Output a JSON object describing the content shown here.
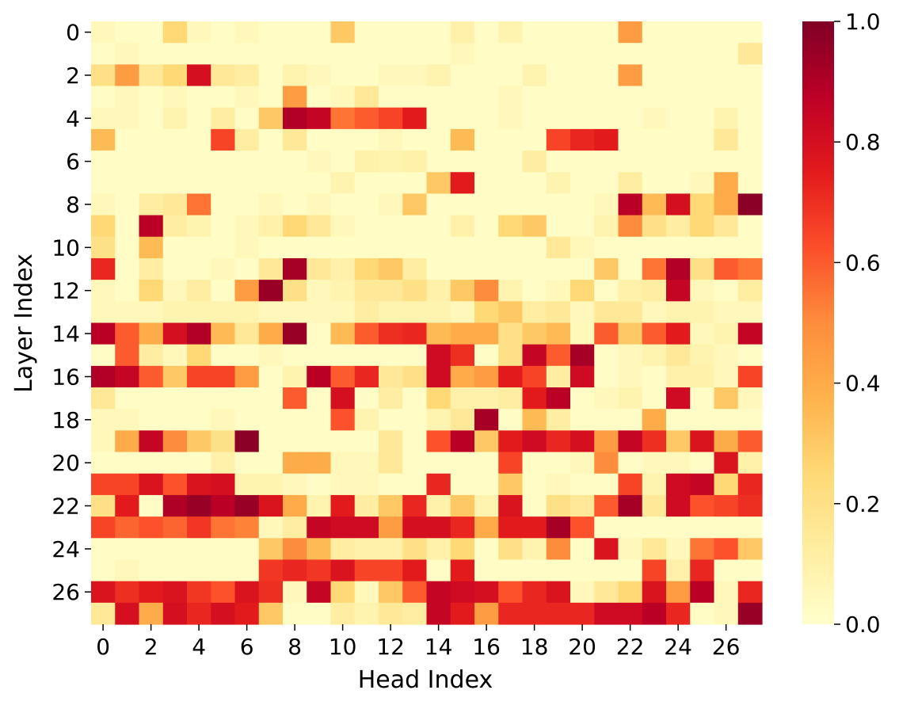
{
  "chart_data": {
    "type": "heatmap",
    "title": "",
    "xlabel": "Head Index",
    "ylabel": "Layer Index",
    "x_tick_labels": [
      "0",
      "2",
      "4",
      "6",
      "8",
      "10",
      "12",
      "14",
      "16",
      "18",
      "20",
      "22",
      "24",
      "26"
    ],
    "y_tick_labels": [
      "0",
      "2",
      "4",
      "6",
      "8",
      "10",
      "12",
      "14",
      "16",
      "18",
      "20",
      "22",
      "24",
      "26"
    ],
    "colorbar": {
      "cmap": "YlOrRd",
      "range": [
        0.0,
        1.0
      ],
      "tick_labels": [
        "0.0",
        "0.2",
        "0.4",
        "0.6",
        "0.8",
        "1.0"
      ],
      "tick_values": [
        0.0,
        0.2,
        0.4,
        0.6,
        0.8,
        1.0
      ]
    },
    "n_layers": 28,
    "n_heads": 28,
    "values": [
      [
        0.05,
        0.02,
        0.02,
        0.25,
        0.05,
        0.02,
        0.05,
        0.02,
        0.02,
        0.02,
        0.3,
        0.02,
        0.02,
        0.02,
        0.02,
        0.1,
        0.02,
        0.08,
        0.02,
        0.02,
        0.02,
        0.02,
        0.45,
        0.02,
        0.02,
        0.02,
        0.02,
        0.02
      ],
      [
        0.02,
        0.05,
        0.02,
        0.02,
        0.02,
        0.02,
        0.02,
        0.02,
        0.02,
        0.02,
        0.02,
        0.02,
        0.02,
        0.02,
        0.02,
        0.05,
        0.02,
        0.02,
        0.02,
        0.02,
        0.02,
        0.02,
        0.02,
        0.02,
        0.02,
        0.02,
        0.02,
        0.15
      ],
      [
        0.2,
        0.45,
        0.15,
        0.25,
        0.8,
        0.15,
        0.12,
        0.02,
        0.08,
        0.05,
        0.02,
        0.02,
        0.05,
        0.05,
        0.08,
        0.02,
        0.02,
        0.02,
        0.08,
        0.02,
        0.02,
        0.02,
        0.45,
        0.02,
        0.02,
        0.02,
        0.02,
        0.02
      ],
      [
        0.02,
        0.05,
        0.02,
        0.05,
        0.02,
        0.02,
        0.05,
        0.02,
        0.45,
        0.02,
        0.05,
        0.15,
        0.02,
        0.02,
        0.02,
        0.02,
        0.02,
        0.05,
        0.02,
        0.02,
        0.02,
        0.02,
        0.02,
        0.02,
        0.02,
        0.02,
        0.02,
        0.02
      ],
      [
        0.05,
        0.05,
        0.02,
        0.08,
        0.02,
        0.12,
        0.02,
        0.3,
        0.9,
        0.85,
        0.55,
        0.6,
        0.65,
        0.75,
        0.02,
        0.02,
        0.02,
        0.05,
        0.02,
        0.02,
        0.02,
        0.02,
        0.02,
        0.05,
        0.02,
        0.02,
        0.08,
        0.02
      ],
      [
        0.35,
        0.02,
        0.02,
        0.02,
        0.02,
        0.65,
        0.12,
        0.02,
        0.15,
        0.02,
        0.02,
        0.02,
        0.05,
        0.02,
        0.02,
        0.35,
        0.02,
        0.02,
        0.02,
        0.65,
        0.72,
        0.75,
        0.02,
        0.02,
        0.02,
        0.02,
        0.15,
        0.02
      ],
      [
        0.02,
        0.02,
        0.02,
        0.02,
        0.02,
        0.02,
        0.02,
        0.02,
        0.02,
        0.05,
        0.02,
        0.1,
        0.08,
        0.1,
        0.02,
        0.02,
        0.02,
        0.02,
        0.12,
        0.02,
        0.02,
        0.02,
        0.02,
        0.02,
        0.02,
        0.02,
        0.02,
        0.02
      ],
      [
        0.02,
        0.02,
        0.02,
        0.02,
        0.02,
        0.02,
        0.02,
        0.02,
        0.02,
        0.02,
        0.08,
        0.02,
        0.02,
        0.02,
        0.3,
        0.75,
        0.02,
        0.02,
        0.02,
        0.08,
        0.02,
        0.02,
        0.12,
        0.02,
        0.02,
        0.05,
        0.4,
        0.02
      ],
      [
        0.05,
        0.02,
        0.12,
        0.15,
        0.55,
        0.02,
        0.02,
        0.05,
        0.02,
        0.05,
        0.02,
        0.02,
        0.05,
        0.3,
        0.02,
        0.02,
        0.02,
        0.02,
        0.02,
        0.02,
        0.02,
        0.05,
        0.88,
        0.35,
        0.8,
        0.25,
        0.4,
        0.98
      ],
      [
        0.25,
        0.02,
        0.88,
        0.12,
        0.08,
        0.02,
        0.05,
        0.1,
        0.25,
        0.15,
        0.05,
        0.02,
        0.02,
        0.02,
        0.02,
        0.1,
        0.02,
        0.25,
        0.3,
        0.02,
        0.02,
        0.08,
        0.5,
        0.2,
        0.12,
        0.25,
        0.15,
        0.02
      ],
      [
        0.2,
        0.02,
        0.35,
        0.02,
        0.02,
        0.02,
        0.05,
        0.02,
        0.02,
        0.02,
        0.02,
        0.02,
        0.02,
        0.02,
        0.02,
        0.02,
        0.02,
        0.02,
        0.02,
        0.15,
        0.05,
        0.02,
        0.02,
        0.02,
        0.02,
        0.02,
        0.02,
        0.02
      ],
      [
        0.72,
        0.02,
        0.12,
        0.02,
        0.02,
        0.05,
        0.02,
        0.15,
        0.92,
        0.15,
        0.1,
        0.25,
        0.3,
        0.12,
        0.02,
        0.02,
        0.02,
        0.02,
        0.02,
        0.02,
        0.02,
        0.3,
        0.02,
        0.55,
        0.9,
        0.2,
        0.6,
        0.55
      ],
      [
        0.05,
        0.02,
        0.25,
        0.05,
        0.12,
        0.02,
        0.45,
        0.95,
        0.2,
        0.05,
        0.08,
        0.15,
        0.15,
        0.2,
        0.1,
        0.3,
        0.5,
        0.08,
        0.02,
        0.05,
        0.25,
        0.02,
        0.1,
        0.12,
        0.85,
        0.05,
        0.02,
        0.12
      ],
      [
        0.05,
        0.05,
        0.05,
        0.08,
        0.08,
        0.08,
        0.08,
        0.05,
        0.05,
        0.05,
        0.05,
        0.12,
        0.08,
        0.08,
        0.08,
        0.05,
        0.25,
        0.3,
        0.12,
        0.15,
        0.05,
        0.15,
        0.15,
        0.05,
        0.08,
        0.08,
        0.05,
        0.05
      ],
      [
        0.88,
        0.6,
        0.4,
        0.8,
        0.9,
        0.35,
        0.15,
        0.4,
        0.95,
        0.02,
        0.35,
        0.6,
        0.7,
        0.72,
        0.35,
        0.4,
        0.4,
        0.2,
        0.3,
        0.35,
        0.05,
        0.6,
        0.3,
        0.6,
        0.75,
        0.05,
        0.08,
        0.85
      ],
      [
        0.02,
        0.6,
        0.12,
        0.05,
        0.25,
        0.02,
        0.02,
        0.05,
        0.02,
        0.02,
        0.02,
        0.02,
        0.02,
        0.02,
        0.82,
        0.7,
        0.02,
        0.2,
        0.85,
        0.6,
        0.92,
        0.02,
        0.05,
        0.08,
        0.15,
        0.08,
        0.05,
        0.02
      ],
      [
        0.9,
        0.85,
        0.6,
        0.3,
        0.65,
        0.65,
        0.45,
        0.02,
        0.08,
        0.88,
        0.6,
        0.72,
        0.15,
        0.2,
        0.82,
        0.4,
        0.45,
        0.75,
        0.65,
        0.12,
        0.82,
        0.02,
        0.05,
        0.02,
        0.1,
        0.1,
        0.05,
        0.65
      ],
      [
        0.15,
        0.02,
        0.02,
        0.02,
        0.02,
        0.02,
        0.02,
        0.02,
        0.6,
        0.02,
        0.8,
        0.02,
        0.12,
        0.02,
        0.25,
        0.1,
        0.1,
        0.12,
        0.75,
        0.88,
        0.02,
        0.05,
        0.08,
        0.02,
        0.82,
        0.02,
        0.3,
        0.05
      ],
      [
        0.05,
        0.05,
        0.02,
        0.02,
        0.02,
        0.05,
        0.02,
        0.02,
        0.02,
        0.02,
        0.62,
        0.08,
        0.02,
        0.02,
        0.08,
        0.15,
        0.92,
        0.02,
        0.35,
        0.12,
        0.02,
        0.02,
        0.02,
        0.4,
        0.02,
        0.02,
        0.02,
        0.02
      ],
      [
        0.05,
        0.4,
        0.85,
        0.5,
        0.3,
        0.2,
        0.98,
        0.02,
        0.02,
        0.02,
        0.02,
        0.02,
        0.15,
        0.02,
        0.62,
        0.88,
        0.3,
        0.75,
        0.82,
        0.72,
        0.8,
        0.45,
        0.85,
        0.7,
        0.3,
        0.78,
        0.4,
        0.6
      ],
      [
        0.02,
        0.02,
        0.02,
        0.02,
        0.02,
        0.1,
        0.02,
        0.02,
        0.4,
        0.4,
        0.05,
        0.05,
        0.15,
        0.02,
        0.02,
        0.02,
        0.02,
        0.65,
        0.02,
        0.02,
        0.05,
        0.5,
        0.02,
        0.05,
        0.05,
        0.02,
        0.78,
        0.1
      ],
      [
        0.65,
        0.65,
        0.78,
        0.62,
        0.78,
        0.8,
        0.08,
        0.08,
        0.05,
        0.02,
        0.05,
        0.05,
        0.02,
        0.02,
        0.72,
        0.02,
        0.02,
        0.3,
        0.02,
        0.05,
        0.02,
        0.02,
        0.65,
        0.08,
        0.82,
        0.85,
        0.25,
        0.72
      ],
      [
        0.2,
        0.75,
        0.02,
        0.9,
        0.95,
        0.88,
        0.95,
        0.78,
        0.4,
        0.08,
        0.75,
        0.12,
        0.3,
        0.72,
        0.1,
        0.3,
        0.08,
        0.78,
        0.02,
        0.2,
        0.15,
        0.6,
        0.92,
        0.15,
        0.82,
        0.62,
        0.65,
        0.7
      ],
      [
        0.65,
        0.58,
        0.62,
        0.58,
        0.68,
        0.55,
        0.52,
        0.05,
        0.12,
        0.85,
        0.82,
        0.82,
        0.45,
        0.8,
        0.8,
        0.72,
        0.4,
        0.75,
        0.75,
        0.92,
        0.62,
        0.02,
        0.02,
        0.02,
        0.02,
        0.02,
        0.02,
        0.02
      ],
      [
        0.02,
        0.02,
        0.02,
        0.02,
        0.02,
        0.02,
        0.02,
        0.3,
        0.5,
        0.35,
        0.12,
        0.1,
        0.1,
        0.2,
        0.1,
        0.25,
        0.02,
        0.2,
        0.08,
        0.5,
        0.02,
        0.78,
        0.05,
        0.15,
        0.05,
        0.55,
        0.62,
        0.3
      ],
      [
        0.02,
        0.05,
        0.02,
        0.02,
        0.02,
        0.02,
        0.02,
        0.68,
        0.72,
        0.68,
        0.78,
        0.65,
        0.65,
        0.75,
        0.02,
        0.75,
        0.02,
        0.02,
        0.02,
        0.02,
        0.02,
        0.02,
        0.02,
        0.65,
        0.1,
        0.72,
        0.02,
        0.02
      ],
      [
        0.78,
        0.7,
        0.75,
        0.78,
        0.68,
        0.62,
        0.78,
        0.7,
        0.05,
        0.85,
        0.25,
        0.05,
        0.3,
        0.6,
        0.85,
        0.82,
        0.8,
        0.62,
        0.72,
        0.78,
        0.05,
        0.15,
        0.25,
        0.78,
        0.45,
        0.88,
        0.05,
        0.72
      ],
      [
        0.15,
        0.8,
        0.4,
        0.8,
        0.72,
        0.8,
        0.75,
        0.3,
        0.02,
        0.02,
        0.12,
        0.08,
        0.15,
        0.12,
        0.85,
        0.75,
        0.45,
        0.72,
        0.72,
        0.72,
        0.72,
        0.82,
        0.82,
        0.88,
        0.72,
        0.02,
        0.05,
        0.95
      ]
    ]
  }
}
